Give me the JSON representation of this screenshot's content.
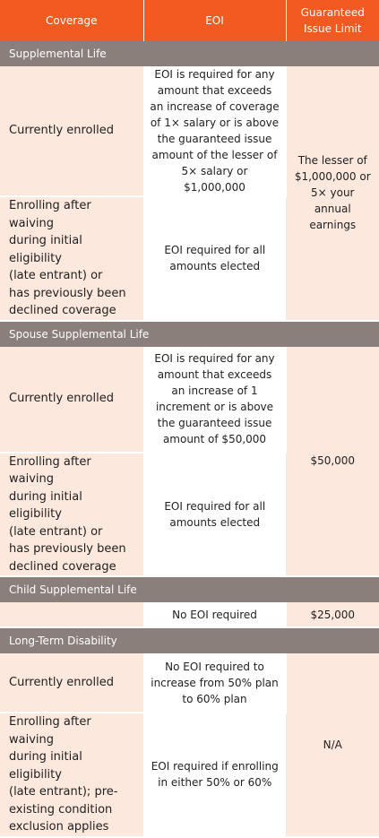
{
  "header": {
    "coverage": "Coverage",
    "eoi": "EOI",
    "limit": "Guaranteed\nIssue Limit"
  },
  "sections": {
    "supplemental_life": {
      "title": "Supplemental Life",
      "row1_coverage": "Currently enrolled",
      "row1_eoi": "EOI is required for any\namount that exceeds\nan increase of coverage\nof 1× salary or is above\nthe guaranteed issue\namount of the lesser of\n5× salary or $1,000,000",
      "row2_coverage": "Enrolling after waiving\nduring initial eligibility\n(late entrant) or\nhas previously been\ndeclined coverage",
      "row2_eoi": "EOI required for all\namounts elected",
      "limit": "The lesser of\n$1,000,000 or\n5× your annual\nearnings"
    },
    "spouse_supplemental_life": {
      "title": "Spouse Supplemental Life",
      "row1_coverage": "Currently enrolled",
      "row1_eoi": "EOI is required for any\namount that exceeds\nan increase of 1\nincrement or is above\nthe guaranteed issue\namount of $50,000",
      "row2_coverage": "Enrolling after waiving\nduring initial eligibility\n(late entrant) or\nhas previously been\ndeclined coverage",
      "row2_eoi": "EOI required for all\namounts elected",
      "limit": "$50,000"
    },
    "child_supplemental_life": {
      "title": "Child Supplemental Life",
      "eoi": "No EOI required",
      "limit": "$25,000"
    },
    "long_term_disability": {
      "title": "Long-Term Disability",
      "row1_coverage": "Currently enrolled",
      "row1_eoi": "No EOI required to\nincrease from 50% plan\nto 60% plan",
      "row2_coverage": "Enrolling after waiving\nduring initial eligibility\n(late entrant); pre-\nexisting condition\nexclusion applies",
      "row2_eoi": "EOI required if enrolling\nin either 50% or 60%",
      "limit": "N/A"
    }
  },
  "colors": {
    "header_bg": "#f25a22",
    "section_bg": "#8a7f7b",
    "tint_bg": "#fde8de"
  }
}
